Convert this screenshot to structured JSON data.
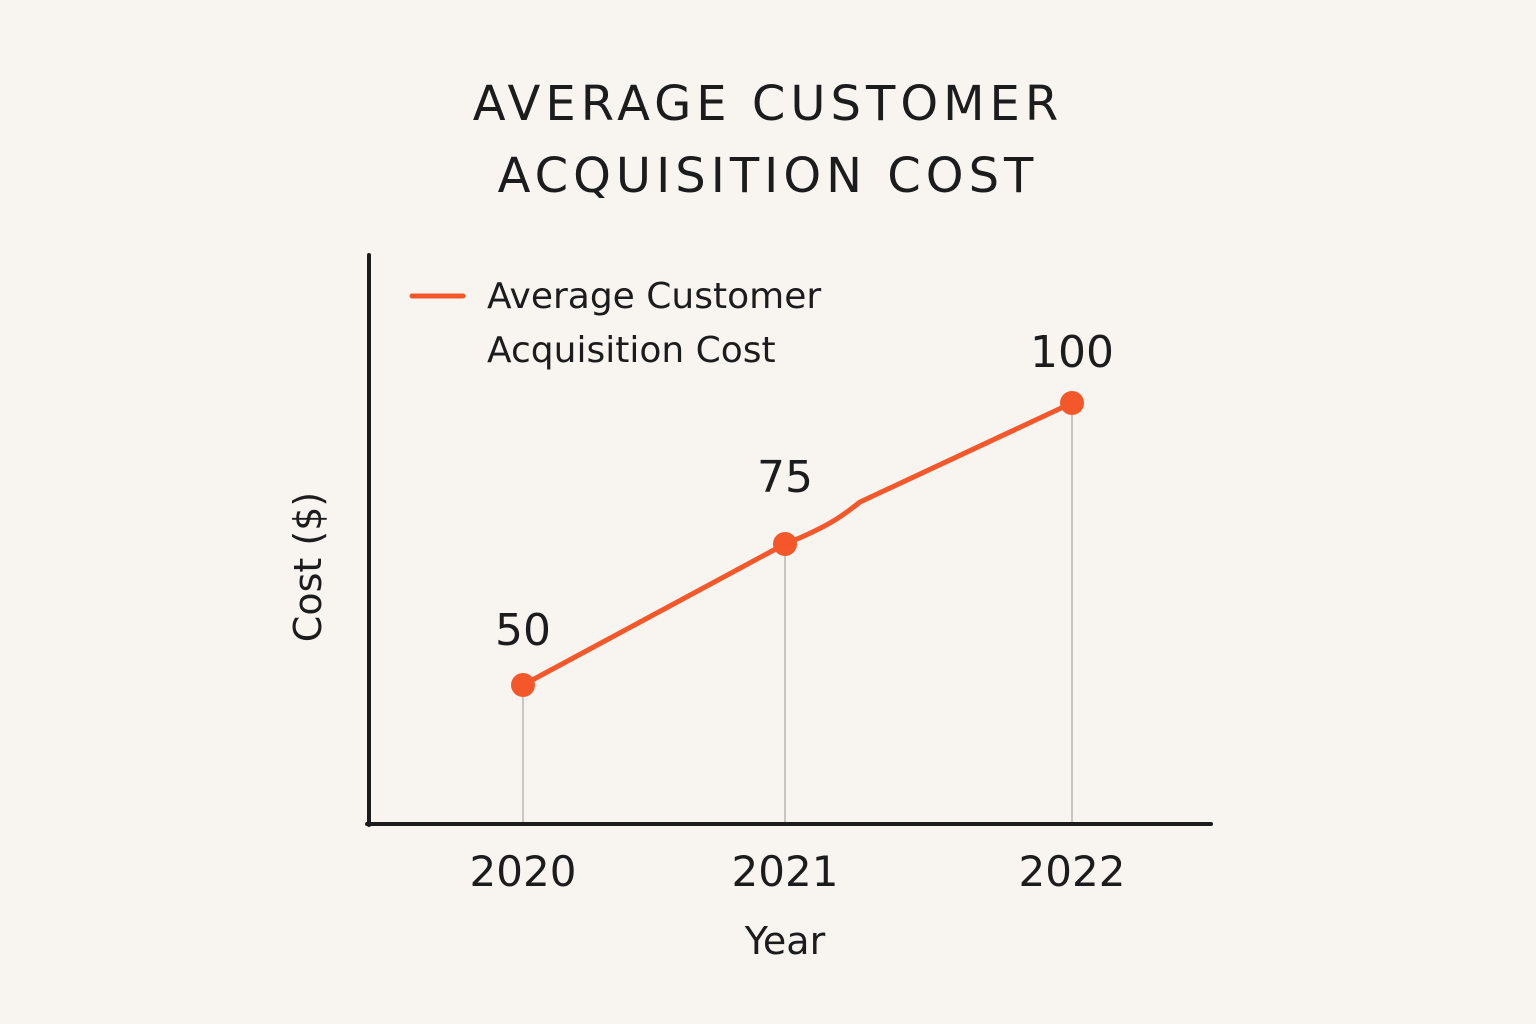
{
  "chart_data": {
    "type": "line",
    "title_lines": [
      "AVERAGE CUSTOMER",
      "ACQUISITION COST"
    ],
    "xlabel": "Year",
    "ylabel": "Cost ($)",
    "categories": [
      "2020",
      "2021",
      "2022"
    ],
    "series": [
      {
        "name_lines": [
          "Average Customer",
          "Acquisition Cost"
        ],
        "values": [
          50,
          75,
          100
        ],
        "data_labels": [
          "50",
          "75",
          "100"
        ],
        "color": "#f4582a"
      }
    ],
    "grid": false,
    "legend": "top-left"
  }
}
